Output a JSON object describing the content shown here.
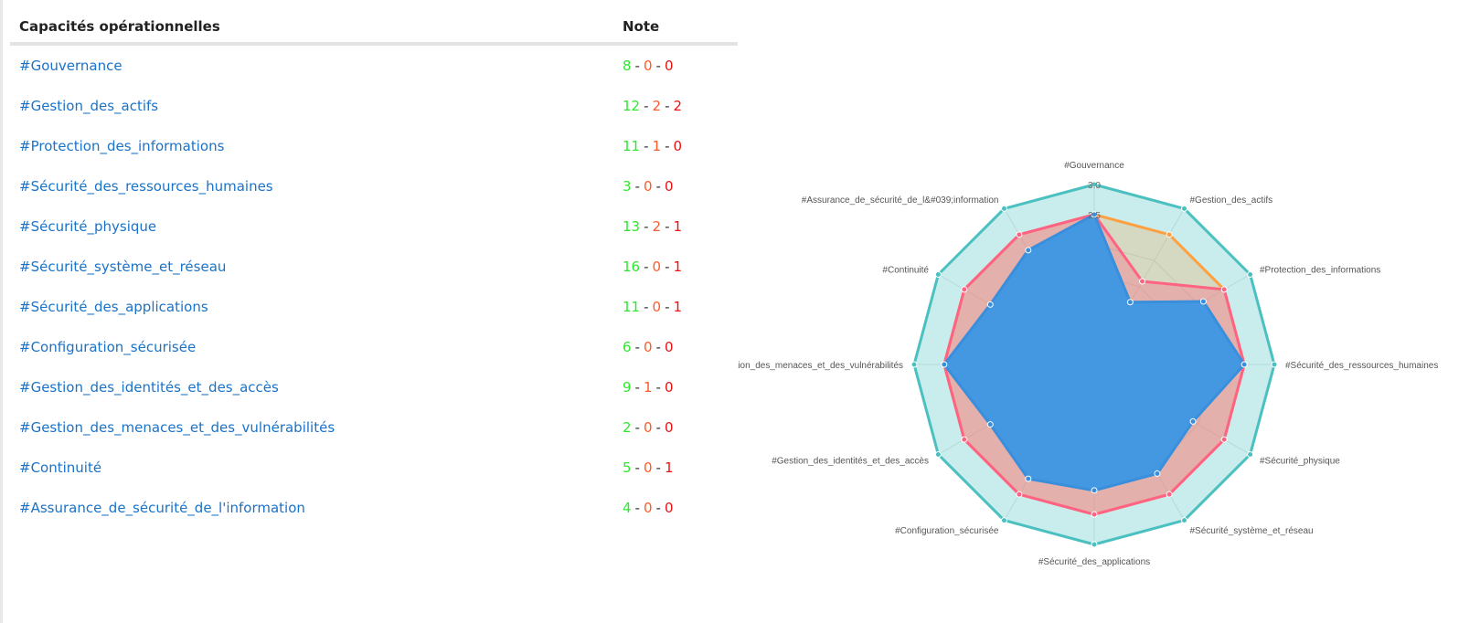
{
  "table": {
    "headers": {
      "capability": "Capacités opérationnelles",
      "note": "Note"
    },
    "rows": [
      {
        "label": "#Gouvernance",
        "green": "8",
        "orange": "0",
        "red": "0"
      },
      {
        "label": "#Gestion_des_actifs",
        "green": "12",
        "orange": "2",
        "red": "2"
      },
      {
        "label": "#Protection_des_informations",
        "green": "11",
        "orange": "1",
        "red": "0"
      },
      {
        "label": "#Sécurité_des_ressources_humaines",
        "green": "3",
        "orange": "0",
        "red": "0"
      },
      {
        "label": "#Sécurité_physique",
        "green": "13",
        "orange": "2",
        "red": "1"
      },
      {
        "label": "#Sécurité_système_et_réseau",
        "green": "16",
        "orange": "0",
        "red": "1"
      },
      {
        "label": "#Sécurité_des_applications",
        "green": "11",
        "orange": "0",
        "red": "1"
      },
      {
        "label": "#Configuration_sécurisée",
        "green": "6",
        "orange": "0",
        "red": "0"
      },
      {
        "label": "#Gestion_des_identités_et_des_accès",
        "green": "9",
        "orange": "1",
        "red": "0"
      },
      {
        "label": "#Gestion_des_menaces_et_des_vulnérabilités",
        "green": "2",
        "orange": "0",
        "red": "0"
      },
      {
        "label": "#Continuité",
        "green": "5",
        "orange": "0",
        "red": "1"
      },
      {
        "label": "#Assurance_de_sécurité_de_l'information",
        "green": "4",
        "orange": "0",
        "red": "0"
      }
    ],
    "separator": "-"
  },
  "colors": {
    "green": "#2ee82e",
    "orange": "#ff5a2a",
    "red": "#ee1111",
    "link": "#1a73c8"
  },
  "chart_data": {
    "type": "radar",
    "axes": [
      "#Gouvernance",
      "#Gestion_des_actifs",
      "#Protection_des_informations",
      "#Sécurité_des_ressources_humaines",
      "#Sécurité_physique",
      "#Sécurité_système_et_réseau",
      "#Sécurité_des_applications",
      "#Configuration_sécurisée",
      "#Gestion_des_identités_et_des_accès",
      "#Gestion_des_menaces_et_des_vulnérabilités",
      "#Continuité",
      "#Assurance_de_sécurité_de_l&#039;information"
    ],
    "rlim": [
      0,
      3.0
    ],
    "ticks": [
      "3.0",
      "2.5"
    ],
    "series": [
      {
        "color": "#4bc0c0",
        "fill": "rgba(75,192,192,0.30)",
        "values": [
          3,
          3,
          3,
          3,
          3,
          3,
          3,
          3,
          3,
          3,
          3,
          3
        ]
      },
      {
        "color": "#ff9f40",
        "fill": "rgba(255,159,64,0.25)",
        "values": [
          2.5,
          2.5,
          2.5,
          2.5,
          2.5,
          2.5,
          2.5,
          2.5,
          2.5,
          2.5,
          2.5,
          2.5
        ]
      },
      {
        "color": "#ff6384",
        "fill": "rgba(255,99,132,0.35)",
        "values": [
          2.5,
          1.6,
          2.5,
          2.5,
          2.5,
          2.5,
          2.5,
          2.5,
          2.5,
          2.5,
          2.5,
          2.5
        ]
      },
      {
        "color": "#3a8fdc",
        "fill": "rgba(54,150,230,0.92)",
        "values": [
          2.5,
          1.2,
          2.1,
          2.5,
          1.9,
          2.1,
          2.1,
          2.2,
          2.0,
          2.5,
          2.0,
          2.2
        ]
      }
    ],
    "legend": "none",
    "grid": true
  }
}
